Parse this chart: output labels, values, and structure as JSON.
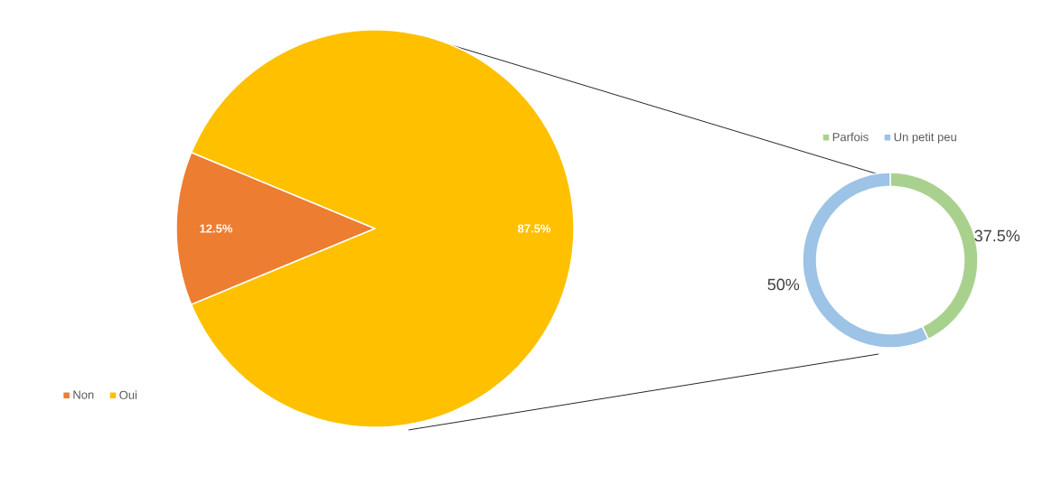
{
  "chart_data": [
    {
      "type": "pie",
      "categories": [
        "Non",
        "Oui"
      ],
      "values": [
        12.5,
        87.5
      ],
      "colors": [
        "#ed7d31",
        "#ffc000"
      ],
      "value_labels": [
        "12.5%",
        "87.5%"
      ],
      "legend": "bottom left"
    },
    {
      "type": "donut",
      "categories": [
        "Parfois",
        "Un petit peu"
      ],
      "values": [
        37.5,
        50
      ],
      "colors": [
        "#a9d18e",
        "#9dc3e6"
      ],
      "value_labels": [
        "37.5%",
        "50%"
      ],
      "legend": "top"
    }
  ]
}
